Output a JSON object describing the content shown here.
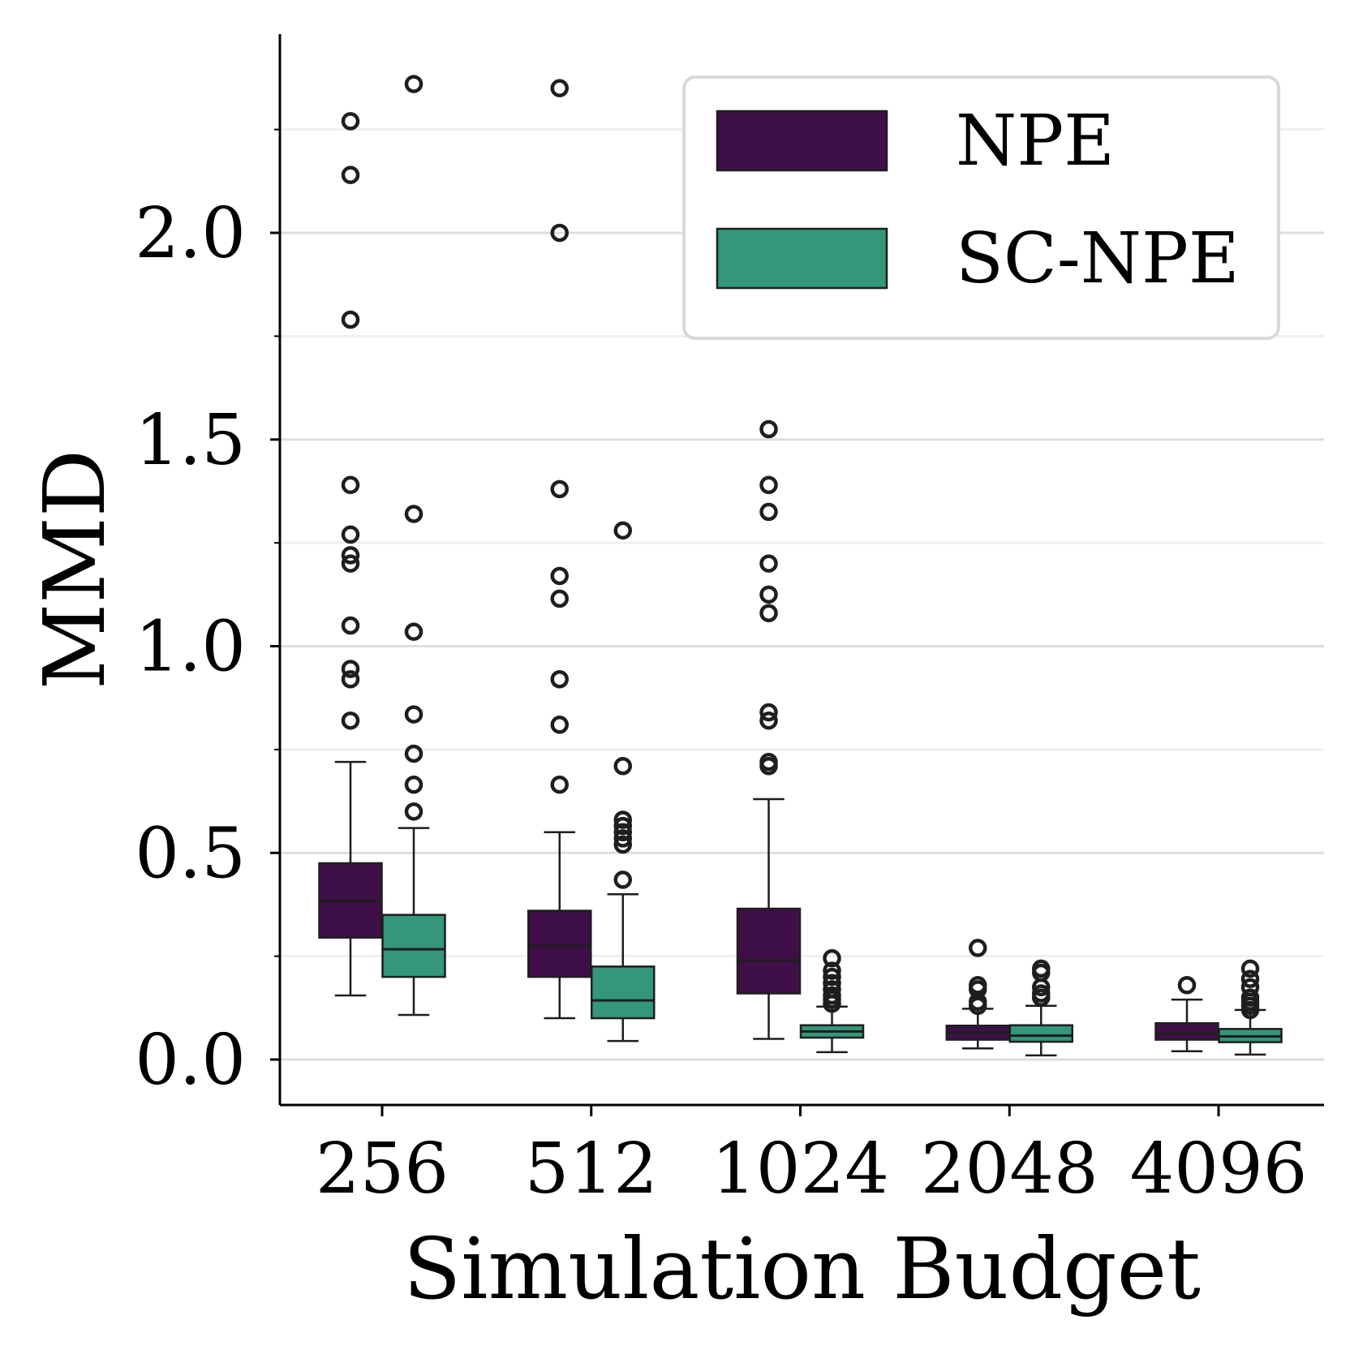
{
  "chart_data": {
    "type": "boxplot",
    "title": "",
    "xlabel": "Simulation Budget",
    "ylabel": "MMD",
    "ylim": [
      -0.1,
      2.42
    ],
    "yticks": [
      0.0,
      0.5,
      1.0,
      1.5,
      2.0
    ],
    "ytick_labels": [
      "0.0",
      "0.5",
      "1.0",
      "1.5",
      "2.0"
    ],
    "minor_grid_y": [
      0.25,
      0.75,
      1.25,
      1.75,
      2.25
    ],
    "categories": [
      "256",
      "512",
      "1024",
      "2048",
      "4096"
    ],
    "legend": {
      "position": "top-right",
      "entries": [
        "NPE",
        "SC-NPE"
      ]
    },
    "series": [
      {
        "name": "NPE",
        "color": "#3f0f48",
        "boxes": [
          {
            "whisker_low": 0.155,
            "q1": 0.295,
            "median": 0.383,
            "q3": 0.475,
            "whisker_high": 0.72,
            "outliers": [
              0.82,
              0.92,
              0.945,
              1.05,
              1.2,
              1.22,
              1.27,
              1.39,
              1.79,
              2.14,
              2.27
            ]
          },
          {
            "whisker_low": 0.1,
            "q1": 0.2,
            "median": 0.275,
            "q3": 0.36,
            "whisker_high": 0.55,
            "outliers": [
              0.665,
              0.81,
              0.92,
              1.115,
              1.17,
              1.38,
              2.0,
              2.35
            ]
          },
          {
            "whisker_low": 0.05,
            "q1": 0.16,
            "median": 0.24,
            "q3": 0.365,
            "whisker_high": 0.63,
            "outliers": [
              0.71,
              0.72,
              0.82,
              0.84,
              1.08,
              1.125,
              1.2,
              1.325,
              1.39,
              1.525
            ]
          },
          {
            "whisker_low": 0.027,
            "q1": 0.048,
            "median": 0.065,
            "q3": 0.082,
            "whisker_high": 0.123,
            "outliers": [
              0.13,
              0.14,
              0.17,
              0.18,
              0.27
            ]
          },
          {
            "whisker_low": 0.02,
            "q1": 0.048,
            "median": 0.063,
            "q3": 0.088,
            "whisker_high": 0.145,
            "outliers": [
              0.18
            ]
          }
        ]
      },
      {
        "name": "SC-NPE",
        "color": "#34967a",
        "boxes": [
          {
            "whisker_low": 0.108,
            "q1": 0.2,
            "median": 0.267,
            "q3": 0.35,
            "whisker_high": 0.56,
            "outliers": [
              0.6,
              0.665,
              0.74,
              0.835,
              1.035,
              1.32,
              2.36
            ]
          },
          {
            "whisker_low": 0.045,
            "q1": 0.1,
            "median": 0.143,
            "q3": 0.225,
            "whisker_high": 0.4,
            "outliers": [
              0.435,
              0.52,
              0.535,
              0.55,
              0.565,
              0.58,
              0.71,
              1.28
            ]
          },
          {
            "whisker_low": 0.018,
            "q1": 0.053,
            "median": 0.068,
            "q3": 0.083,
            "whisker_high": 0.128,
            "outliers": [
              0.135,
              0.145,
              0.155,
              0.17,
              0.185,
              0.2,
              0.215,
              0.245
            ]
          },
          {
            "whisker_low": 0.01,
            "q1": 0.043,
            "median": 0.058,
            "q3": 0.083,
            "whisker_high": 0.13,
            "outliers": [
              0.15,
              0.16,
              0.175,
              0.21,
              0.22
            ]
          },
          {
            "whisker_low": 0.012,
            "q1": 0.042,
            "median": 0.056,
            "q3": 0.074,
            "whisker_high": 0.12,
            "outliers": [
              0.12,
              0.13,
              0.14,
              0.15,
              0.175,
              0.195,
              0.22
            ]
          }
        ]
      }
    ]
  }
}
